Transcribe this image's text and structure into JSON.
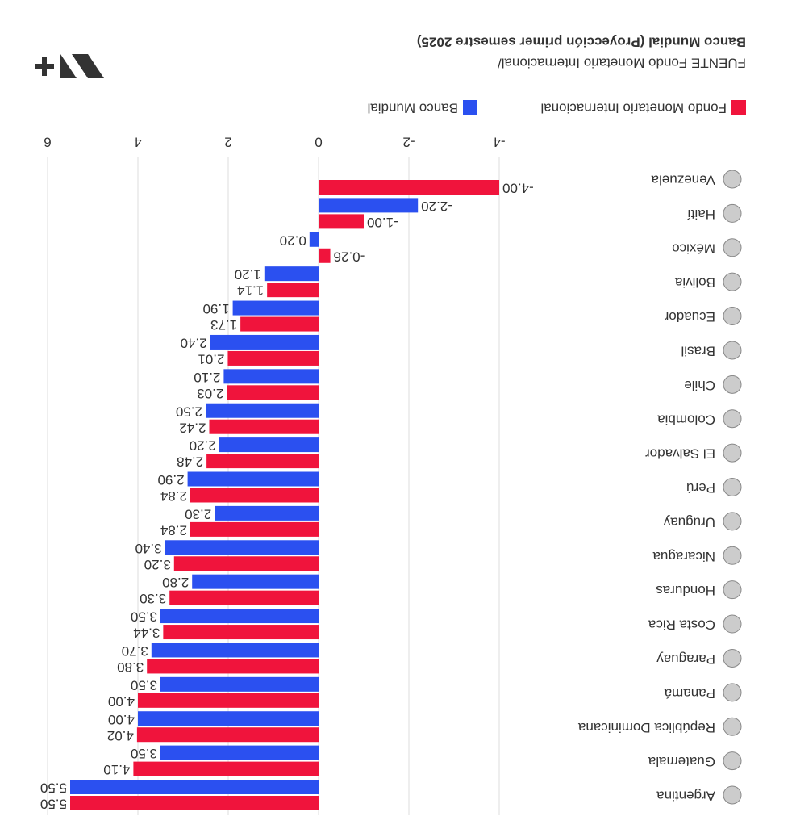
{
  "chart_data": {
    "type": "bar",
    "orientation": "horizontal",
    "source": "FUENTE Fondo Monetario Internacional/",
    "source_detail": "Banco Mundial (Proyección primer semestre 2025)",
    "categories": [
      "Argentina",
      "Guatemala",
      "República Dominicana",
      "Panamá",
      "Paraguay",
      "Costa Rica",
      "Honduras",
      "Nicaragua",
      "Uruguay",
      "Perú",
      "El Salvador",
      "Colombia",
      "Chile",
      "Brasil",
      "Ecuador",
      "Bolivia",
      "México",
      "Haití",
      "Venezuela"
    ],
    "series": [
      {
        "name": "Fondo Monetario Internacional",
        "color": "#f0143c",
        "values": [
          5.5,
          4.1,
          4.02,
          4.0,
          3.8,
          3.44,
          3.3,
          3.2,
          2.84,
          2.84,
          2.48,
          2.42,
          2.03,
          2.01,
          1.73,
          1.14,
          -0.26,
          -1.0,
          -4.0
        ],
        "value_labels": [
          "5.50",
          "4.10",
          "4.02",
          "4.00",
          "3.80",
          "3.44",
          "3.30",
          "3.20",
          "2.84",
          "2.84",
          "2.48",
          "2.42",
          "2.03",
          "2.01",
          "1.73",
          "1.14",
          "-0.26",
          "-1.00",
          "-4.00"
        ]
      },
      {
        "name": "Banco Mundial",
        "color": "#2b50f0",
        "values": [
          5.5,
          3.5,
          4.0,
          3.5,
          3.7,
          3.5,
          2.8,
          3.4,
          2.3,
          2.9,
          2.2,
          2.5,
          2.1,
          2.4,
          1.9,
          1.2,
          0.2,
          -2.2,
          null
        ],
        "value_labels": [
          "5.50",
          "3.50",
          "4.00",
          "3.50",
          "3.70",
          "3.50",
          "2.80",
          "3.40",
          "2.30",
          "2.90",
          "2.20",
          "2.50",
          "2.10",
          "2.40",
          "1.90",
          "1.20",
          "0.20",
          "-2.20",
          null
        ]
      }
    ],
    "xlim": [
      -4.5,
      6
    ],
    "xticks": [
      -4,
      -2,
      0,
      2,
      4,
      6
    ],
    "grid": true,
    "rotated": 180
  }
}
